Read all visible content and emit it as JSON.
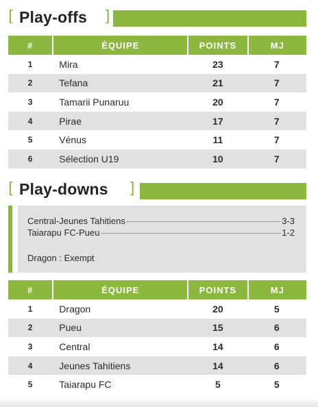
{
  "playoffs": {
    "title": "Play-offs",
    "bracket_open": "[",
    "bracket_close": "]",
    "columns": [
      "#",
      "ÉQUIPE",
      "POINTS",
      "MJ"
    ],
    "rows": [
      {
        "rank": "1",
        "team": "Mira",
        "points": "23",
        "mj": "7"
      },
      {
        "rank": "2",
        "team": "Tefana",
        "points": "21",
        "mj": "7"
      },
      {
        "rank": "3",
        "team": "Tamarii Punaruu",
        "points": "20",
        "mj": "7"
      },
      {
        "rank": "4",
        "team": "Pirae",
        "points": "17",
        "mj": "7"
      },
      {
        "rank": "5",
        "team": "Vénus",
        "points": "11",
        "mj": "7"
      },
      {
        "rank": "6",
        "team": "Sélection U19",
        "points": "10",
        "mj": "7"
      }
    ]
  },
  "playdowns": {
    "title": "Play-downs",
    "bracket_open": "[",
    "bracket_close": "]",
    "results": [
      {
        "match": "Central-Jeunes Tahitiens",
        "score": "3-3"
      },
      {
        "match": "Taiarapu FC-Pueu",
        "score": "1-2"
      }
    ],
    "exempt": "Dragon : Exempt",
    "columns": [
      "#",
      "ÉQUIPE",
      "POINTS",
      "MJ"
    ],
    "rows": [
      {
        "rank": "1",
        "team": "Dragon",
        "points": "20",
        "mj": "5"
      },
      {
        "rank": "2",
        "team": "Pueu",
        "points": "15",
        "mj": "6"
      },
      {
        "rank": "3",
        "team": "Central",
        "points": "14",
        "mj": "6"
      },
      {
        "rank": "4",
        "team": "Jeunes Tahitiens",
        "points": "14",
        "mj": "6"
      },
      {
        "rank": "5",
        "team": "Taiarapu FC",
        "points": "5",
        "mj": "5"
      }
    ]
  },
  "colors": {
    "accent": "#8cb840",
    "row_alt": "#e1e1e1",
    "text": "#2b2b2b"
  }
}
